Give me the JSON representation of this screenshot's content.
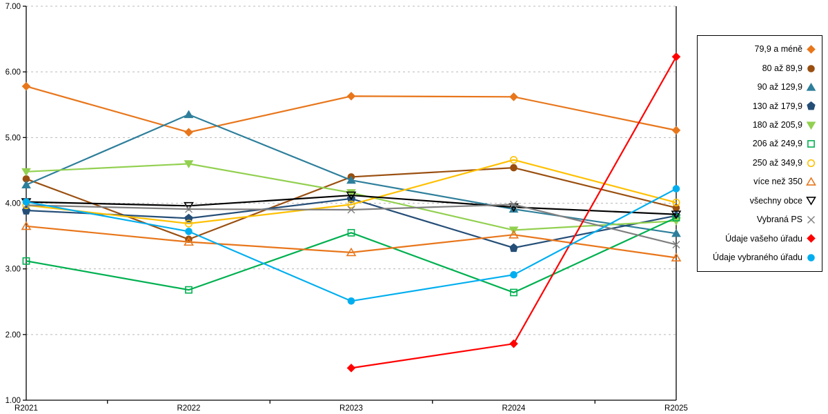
{
  "chart_data": {
    "type": "line",
    "title": "",
    "xlabel": "",
    "ylabel": "",
    "categories": [
      "R2021",
      "R2022",
      "R2023",
      "R2024",
      "R2025"
    ],
    "y_axis": {
      "min": 1,
      "max": 7,
      "tick_step": 1,
      "tick_labels": [
        "1.00",
        "2.00",
        "3.00",
        "4.00",
        "5.00",
        "6.00",
        "7.00"
      ]
    },
    "grid": "horizontal-dashed",
    "grid_color": "#b8b8b8",
    "legend_position": "right",
    "series": [
      {
        "name": "79,9 a méně",
        "color": "#E8761B",
        "marker": "diamond",
        "fill": "filled",
        "values": [
          5.78,
          5.08,
          5.63,
          5.62,
          5.11
        ]
      },
      {
        "name": "80 až 89,9",
        "color": "#9A4F10",
        "marker": "circle",
        "fill": "filled",
        "values": [
          4.37,
          3.45,
          4.4,
          4.54,
          3.93
        ]
      },
      {
        "name": "90 až 129,9",
        "color": "#2E7F9B",
        "marker": "triangle-up",
        "fill": "filled",
        "values": [
          4.28,
          5.35,
          4.35,
          3.91,
          3.54
        ]
      },
      {
        "name": "130 až 179,9",
        "color": "#254E77",
        "marker": "pentagon",
        "fill": "filled",
        "values": [
          3.89,
          3.77,
          4.07,
          3.32,
          3.81
        ]
      },
      {
        "name": "180 až 205,9",
        "color": "#92D050",
        "marker": "triangle-down",
        "fill": "filled",
        "values": [
          4.48,
          4.6,
          4.16,
          3.59,
          3.73
        ]
      },
      {
        "name": "206 až 249,9",
        "color": "#00B050",
        "marker": "square",
        "fill": "hollow",
        "values": [
          3.12,
          2.68,
          3.55,
          2.64,
          3.78
        ]
      },
      {
        "name": "250 až 349,9",
        "color": "#FFC000",
        "marker": "circle",
        "fill": "hollow",
        "values": [
          3.97,
          3.69,
          3.98,
          4.66,
          4.01
        ]
      },
      {
        "name": "více než 350",
        "color": "#E8761B",
        "marker": "triangle-up",
        "fill": "hollow",
        "values": [
          3.65,
          3.41,
          3.25,
          3.52,
          3.17
        ]
      },
      {
        "name": "všechny obce",
        "color": "#000000",
        "marker": "triangle-down",
        "fill": "hollow",
        "values": [
          4.02,
          3.96,
          4.12,
          3.94,
          3.83
        ]
      },
      {
        "name": "Vybraná PS",
        "color": "#7F7F7F",
        "marker": "x",
        "fill": "hollow",
        "values": [
          3.97,
          3.91,
          3.9,
          3.98,
          3.37
        ]
      },
      {
        "name": "Údaje vašeho úřadu",
        "color": "#FF0000",
        "marker": "diamond",
        "fill": "filled",
        "values": [
          null,
          null,
          1.49,
          1.86,
          6.23
        ]
      },
      {
        "name": "Údaje vybraného úřadu",
        "color": "#00AEEF",
        "marker": "circle",
        "fill": "filled",
        "values": [
          4.02,
          3.57,
          2.51,
          2.91,
          4.22
        ]
      }
    ]
  }
}
